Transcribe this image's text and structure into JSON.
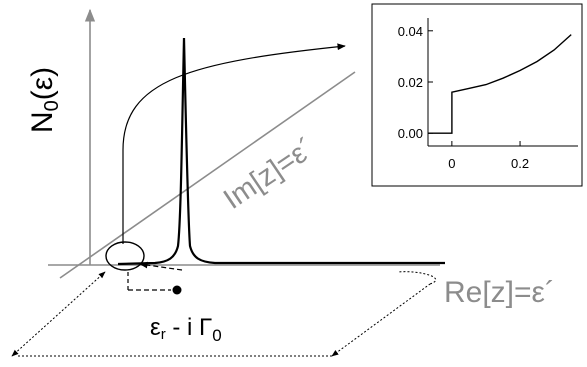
{
  "main": {
    "ylabel_main": "N",
    "ylabel_sub": "0",
    "ylabel_arg": "(ε)",
    "diag_axis_label": "Im[z]=ε´",
    "real_axis_label": "Re[z]=ε´",
    "pole_label_main": "ε",
    "pole_label_sub": "r",
    "pole_label_rest": " - i Γ",
    "pole_label_sub2": "0"
  },
  "inset": {
    "chart_data": {
      "type": "line",
      "title": "",
      "xlabel": "",
      "ylabel": "",
      "xlim": [
        -0.07,
        0.37
      ],
      "ylim": [
        -0.005,
        0.045
      ],
      "xticks": [
        "0",
        "0.2"
      ],
      "yticks": [
        "0.00",
        "0.02",
        "0.04"
      ],
      "series": [
        {
          "x": [
            -0.07,
            0.0,
            0.0,
            0.05,
            0.1,
            0.15,
            0.2,
            0.25,
            0.3,
            0.35
          ],
          "y": [
            0.0,
            0.0,
            0.016,
            0.0175,
            0.019,
            0.0215,
            0.0245,
            0.028,
            0.0325,
            0.0385
          ]
        }
      ]
    }
  },
  "colors": {
    "axis": "#8c8c8c",
    "curve": "#000000",
    "background": "#ffffff"
  }
}
